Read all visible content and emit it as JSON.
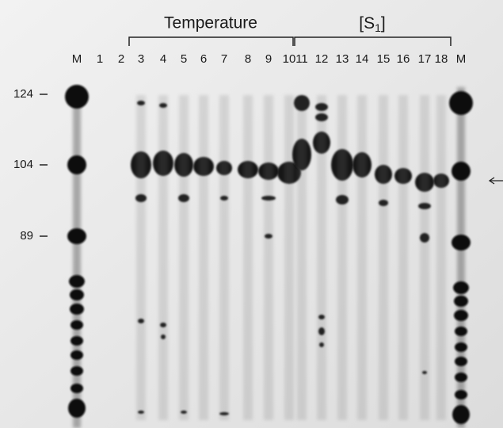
{
  "header": {
    "groups": [
      {
        "label": "Temperature"
      },
      {
        "label_parts": [
          "[S",
          "1",
          "]"
        ]
      }
    ]
  },
  "lanes": [
    "M",
    "1",
    "2",
    "3",
    "4",
    "5",
    "6",
    "7",
    "8",
    "9",
    "10",
    "11",
    "12",
    "13",
    "14",
    "15",
    "16",
    "17",
    "18",
    "M"
  ],
  "size_markers": [
    "124",
    "104",
    "89"
  ]
}
